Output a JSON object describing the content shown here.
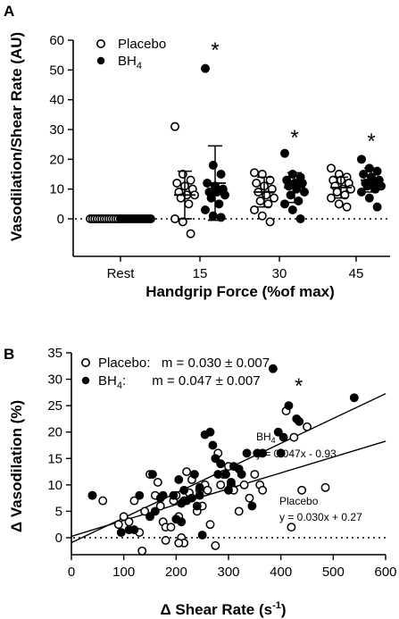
{
  "chart_data": [
    {
      "panel": "A",
      "type": "scatter",
      "ylabel": "Vasodilation/Shear Rate (AU)",
      "xlabel": "Handgrip Force (%of max)",
      "categories": [
        "Rest",
        "15",
        "30",
        "45"
      ],
      "ylim": [
        -10,
        60
      ],
      "yticks": [
        0,
        10,
        20,
        30,
        40,
        50,
        60
      ],
      "legend": {
        "position": "top-left",
        "placebo": "Placebo",
        "bh4_main": "BH",
        "bh4_sub": "4"
      },
      "significance": [
        "",
        "*",
        "*",
        "*"
      ],
      "series": [
        {
          "name": "Placebo",
          "marker": "open-circle",
          "mean": [
            0,
            8,
            9,
            10.5
          ],
          "sd": [
            0,
            8,
            5,
            3.5
          ],
          "points": [
            [
              0,
              0,
              0,
              0,
              0,
              0,
              0,
              0,
              0,
              0,
              0,
              0,
              0,
              0
            ],
            [
              31,
              15,
              13,
              12,
              11,
              10,
              9,
              8,
              8,
              7,
              5,
              0,
              -1,
              -5
            ],
            [
              15.5,
              15,
              13,
              12,
              11,
              10,
              9,
              8,
              7,
              6,
              5,
              3,
              1,
              -1
            ],
            [
              17,
              15,
              14,
              13,
              13,
              12,
              11,
              10,
              10,
              9,
              8,
              7,
              5,
              4
            ]
          ]
        },
        {
          "name": "BH4",
          "marker": "filled-circle",
          "mean": [
            0,
            12,
            10.5,
            13
          ],
          "sd": [
            0,
            12.5,
            5,
            4
          ],
          "points": [
            [
              0,
              0,
              0,
              0,
              0,
              0,
              0,
              0,
              0,
              0,
              0,
              0,
              0,
              0
            ],
            [
              50.5,
              18,
              15,
              12,
              11,
              10,
              9,
              9,
              8,
              7,
              5,
              3,
              1,
              0.5
            ],
            [
              22,
              15,
              14,
              13,
              12,
              12,
              11,
              10,
              9,
              8,
              6,
              5,
              3,
              0
            ],
            [
              20,
              17,
              16,
              15,
              14,
              13,
              12,
              12,
              11,
              11,
              10,
              9,
              7,
              4
            ]
          ]
        }
      ]
    },
    {
      "panel": "B",
      "type": "scatter",
      "xlabel_prefix": "Δ Shear Rate (s",
      "xlabel_sup": "-1",
      "xlabel_suffix": ")",
      "ylabel": "Δ Vasodilation (%)",
      "xlim": [
        0,
        600
      ],
      "ylim": [
        -5,
        35
      ],
      "xticks": [
        0,
        100,
        200,
        300,
        400,
        500,
        600
      ],
      "yticks": [
        0,
        5,
        10,
        15,
        20,
        25,
        30,
        35
      ],
      "legend": {
        "placebo_text": "Placebo:   m = 0.030 ± 0.007",
        "bh4_main": "BH",
        "bh4_sub": "4",
        "bh4_text": ":       m = 0.047 ± 0.007",
        "bh4_star": "*"
      },
      "fits": [
        {
          "name": "BH4",
          "slope": 0.047,
          "intercept": -0.93,
          "label_main": "BH",
          "label_sub": "4",
          "equation": "y = 0.047x - 0.93"
        },
        {
          "name": "Placebo",
          "slope": 0.03,
          "intercept": 0.27,
          "label": "Placebo",
          "equation": "y = 0.030x + 0.27"
        }
      ],
      "series": [
        {
          "name": "Placebo",
          "marker": "open-circle",
          "points": [
            [
              40,
              8
            ],
            [
              60,
              7
            ],
            [
              90,
              2.5
            ],
            [
              100,
              4
            ],
            [
              110,
              3
            ],
            [
              120,
              7
            ],
            [
              140,
              5
            ],
            [
              150,
              12
            ],
            [
              160,
              8
            ],
            [
              165,
              10.5
            ],
            [
              170,
              6
            ],
            [
              175,
              3
            ],
            [
              180,
              2
            ],
            [
              190,
              2
            ],
            [
              195,
              7
            ],
            [
              200,
              8
            ],
            [
              205,
              4
            ],
            [
              210,
              0
            ],
            [
              215,
              -1
            ],
            [
              220,
              12.5
            ],
            [
              225,
              8.5
            ],
            [
              230,
              11
            ],
            [
              240,
              5
            ],
            [
              245,
              9
            ],
            [
              250,
              6
            ],
            [
              255,
              10
            ],
            [
              265,
              2.5
            ],
            [
              275,
              -1.5
            ],
            [
              280,
              16
            ],
            [
              285,
              10
            ],
            [
              290,
              12
            ],
            [
              300,
              13.5
            ],
            [
              305,
              10
            ],
            [
              310,
              9
            ],
            [
              320,
              5
            ],
            [
              330,
              10
            ],
            [
              340,
              7.5
            ],
            [
              360,
              10
            ],
            [
              365,
              9
            ],
            [
              410,
              24
            ],
            [
              420,
              2
            ],
            [
              425,
              19
            ],
            [
              440,
              9
            ],
            [
              450,
              21
            ],
            [
              485,
              9.5
            ],
            [
              135,
              -2.5
            ],
            [
              130,
              1
            ],
            [
              180,
              -0.5
            ],
            [
              205,
              -1
            ],
            [
              260,
              9
            ],
            [
              350,
              12
            ]
          ]
        },
        {
          "name": "BH4",
          "marker": "filled-circle",
          "points": [
            [
              40,
              8
            ],
            [
              95,
              1
            ],
            [
              110,
              1.5
            ],
            [
              120,
              1.5
            ],
            [
              130,
              8
            ],
            [
              150,
              4
            ],
            [
              155,
              12
            ],
            [
              160,
              5
            ],
            [
              170,
              7.5
            ],
            [
              175,
              8
            ],
            [
              195,
              8
            ],
            [
              200,
              3.5
            ],
            [
              205,
              11
            ],
            [
              210,
              3
            ],
            [
              215,
              7
            ],
            [
              220,
              7
            ],
            [
              230,
              7.5
            ],
            [
              235,
              12
            ],
            [
              240,
              6
            ],
            [
              245,
              8
            ],
            [
              250,
              0.5
            ],
            [
              255,
              19.5
            ],
            [
              265,
              20
            ],
            [
              270,
              17.5
            ],
            [
              275,
              15
            ],
            [
              280,
              12
            ],
            [
              285,
              14
            ],
            [
              295,
              12
            ],
            [
              300,
              9
            ],
            [
              305,
              10.5
            ],
            [
              310,
              13.5
            ],
            [
              320,
              13
            ],
            [
              325,
              12
            ],
            [
              335,
              16
            ],
            [
              345,
              6
            ],
            [
              355,
              16
            ],
            [
              365,
              16
            ],
            [
              385,
              32
            ],
            [
              395,
              20
            ],
            [
              400,
              16
            ],
            [
              405,
              19
            ],
            [
              415,
              25
            ],
            [
              430,
              22.5
            ],
            [
              435,
              22
            ],
            [
              540,
              26.5
            ],
            [
              245,
              9.5
            ],
            [
              215,
              9
            ],
            [
              210,
              6.5
            ]
          ]
        }
      ]
    }
  ],
  "panels": {
    "a_label": "A",
    "b_label": "B"
  }
}
